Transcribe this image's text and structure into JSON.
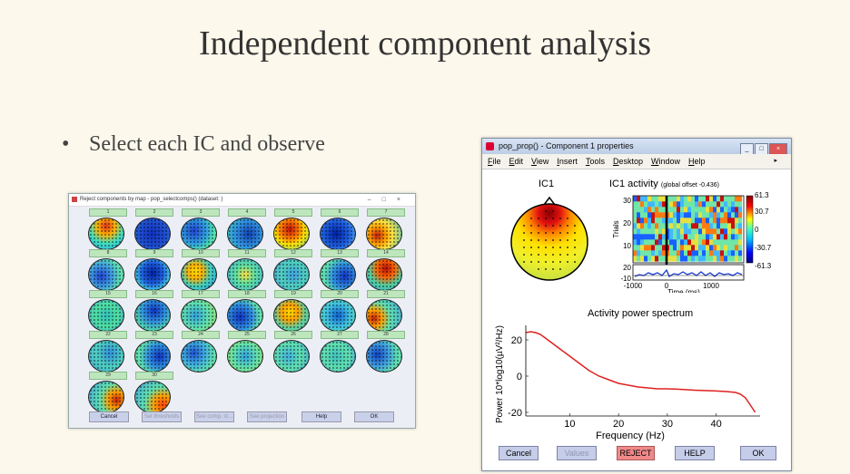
{
  "slide": {
    "title": "Independent component analysis",
    "bullet": "Select each IC and observe"
  },
  "left_window": {
    "title": "Reject components by map - pop_selectcomps() (dataset: )",
    "component_labels": [
      "1",
      "2",
      "3",
      "4",
      "5",
      "6",
      "7",
      "8",
      "9",
      "10",
      "11",
      "12",
      "13",
      "14",
      "15",
      "16",
      "17",
      "18",
      "19",
      "20",
      "21",
      "22",
      "23",
      "24",
      "25",
      "26",
      "27",
      "28",
      "29",
      "30"
    ],
    "buttons": [
      "Cancel",
      "Set thresholds",
      "See comp. st...",
      "See projection",
      "Help",
      "OK"
    ]
  },
  "right_window": {
    "title": "pop_prop() - Component 1 properties",
    "menu": [
      "File",
      "Edit",
      "View",
      "Insert",
      "Tools",
      "Desktop",
      "Window",
      "Help"
    ],
    "ic_title": "IC1",
    "activity_title": "IC1 activity",
    "activity_subtitle": "(global offset -0.436)",
    "trials_label": "Trials",
    "trial_ticks": [
      "30",
      "20",
      "10",
      "20"
    ],
    "erp_ticks": [
      "-10"
    ],
    "time_ticks": [
      "-1000",
      "0",
      "1000"
    ],
    "time_label": "Time (ms)",
    "colorbar_ticks": [
      "61.3",
      "30.7",
      "0",
      "-30.7",
      "-61.3"
    ],
    "spectrum_title": "Activity power spectrum",
    "buttons": [
      "Cancel",
      "Values",
      "REJECT",
      "HELP",
      "OK"
    ]
  },
  "chart_data": {
    "type": "line",
    "title": "Activity power spectrum",
    "xlabel": "Frequency (Hz)",
    "ylabel": "Power 10*log10(µV²/Hz)",
    "x": [
      1,
      2,
      3,
      4,
      5,
      6,
      7,
      8,
      10,
      12,
      14,
      16,
      18,
      20,
      22,
      24,
      26,
      28,
      30,
      32,
      34,
      36,
      38,
      40,
      42,
      44,
      45,
      46,
      47,
      48
    ],
    "series": [
      {
        "values": [
          24,
          24.5,
          24,
          23,
          21,
          19,
          17,
          15,
          11,
          7,
          3,
          0,
          -2,
          -4,
          -5,
          -6,
          -6.5,
          -7,
          -7,
          -7.2,
          -7.5,
          -7.8,
          -8,
          -8.2,
          -8.5,
          -9,
          -10,
          -12,
          -16,
          -20
        ]
      }
    ],
    "xticks": [
      "10",
      "20",
      "30",
      "40"
    ],
    "yticks": [
      "20",
      "0",
      "-20"
    ],
    "xlim": [
      1,
      49
    ],
    "ylim": [
      -22,
      28
    ],
    "color": "#e02020"
  }
}
